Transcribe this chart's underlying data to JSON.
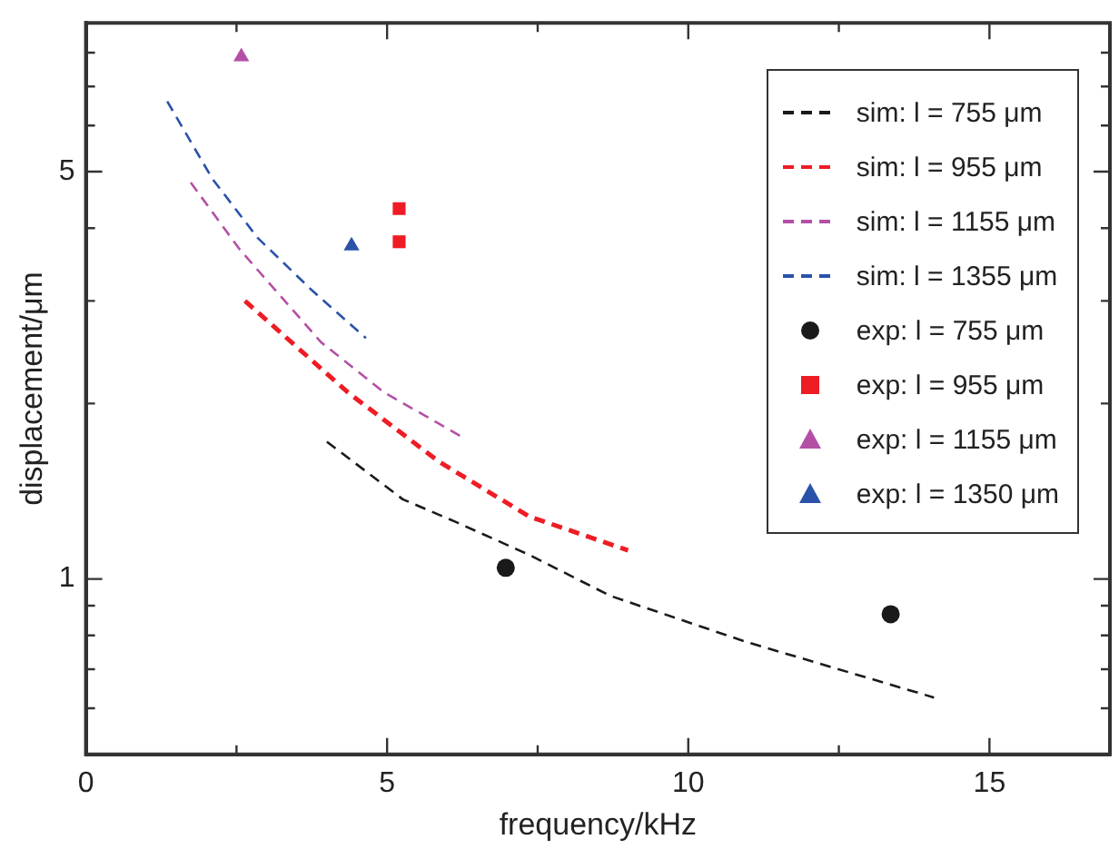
{
  "chart_data": {
    "type": "scatter",
    "xlabel": "frequency/kHz",
    "ylabel": "displacement/μm",
    "log": "y",
    "xlim": [
      0,
      17
    ],
    "ylim": [
      0.5,
      9
    ],
    "xticks": [
      0,
      {
        "value": 2.5,
        "label": null
      },
      5,
      {
        "value": 7.5,
        "label": null
      },
      10,
      {
        "value": 12.5,
        "label": null
      },
      15
    ],
    "yticks": [
      {
        "value": 0.6,
        "label": null
      },
      {
        "value": 0.7,
        "label": null
      },
      {
        "value": 0.8,
        "label": null
      },
      {
        "value": 0.9,
        "label": null
      },
      1,
      {
        "value": 2,
        "label": null
      },
      {
        "value": 3,
        "label": null
      },
      {
        "value": 4,
        "label": null
      },
      5,
      {
        "value": 6,
        "label": null
      },
      {
        "value": 7,
        "label": null
      },
      {
        "value": 8,
        "label": null
      }
    ],
    "grid": false,
    "legend": "top right",
    "series": [
      {
        "name": "sim: l = 755 μm",
        "type": "line",
        "line_style": "dashed",
        "marker": "none",
        "color": "#1a1a1a",
        "x": [
          4.0,
          5.26,
          6.16,
          7.36,
          8.7,
          10.96,
          14.08
        ],
        "values": [
          1.72,
          1.37,
          1.25,
          1.1,
          0.936,
          0.78,
          0.626
        ]
      },
      {
        "name": "sim: l = 955 μm",
        "type": "line",
        "line_style": "dashed",
        "marker": "none",
        "color": "#ee1c25",
        "x": [
          2.64,
          4.35,
          5.86,
          7.36,
          9.0
        ],
        "values": [
          3.0,
          2.09,
          1.59,
          1.28,
          1.12
        ]
      },
      {
        "name": "sim: l = 1155 μm",
        "type": "line",
        "line_style": "dashed",
        "marker": "none",
        "color": "#b44fa6",
        "x": [
          1.74,
          2.55,
          3.9,
          4.95,
          6.3
        ],
        "values": [
          4.79,
          3.68,
          2.55,
          2.09,
          1.74
        ]
      },
      {
        "name": "sim: l = 1355 μm",
        "type": "line",
        "line_style": "dashed",
        "marker": "none",
        "color": "#2a52a8",
        "x": [
          1.35,
          2.1,
          2.85,
          3.75,
          4.65
        ],
        "values": [
          6.6,
          4.86,
          3.85,
          3.13,
          2.59
        ]
      },
      {
        "name": "exp: l = 755 μm",
        "type": "scatter",
        "marker": "circle",
        "color": "#1a1a1a",
        "x": [
          6.97,
          13.36
        ],
        "values": [
          1.045,
          0.87
        ]
      },
      {
        "name": "exp: l = 955 μm",
        "type": "scatter",
        "marker": "square",
        "color": "#ee1c25",
        "x": [
          5.2,
          5.2
        ],
        "values": [
          4.32,
          3.79
        ]
      },
      {
        "name": "exp: l = 1155 μm",
        "type": "scatter",
        "marker": "triangle",
        "color": "#b44fa6",
        "x": [
          2.58
        ],
        "values": [
          7.87
        ]
      },
      {
        "name": "exp: l = 1350 μm",
        "type": "scatter",
        "marker": "triangle",
        "color": "#2a52a8",
        "x": [
          4.41
        ],
        "values": [
          3.73
        ]
      }
    ]
  }
}
